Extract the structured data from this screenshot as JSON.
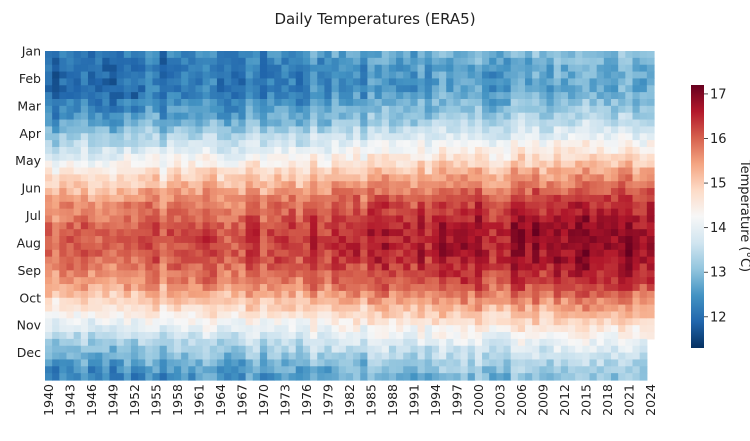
{
  "chart_data": {
    "type": "heatmap",
    "title": "Daily Temperatures (ERA5)",
    "xlabel": "",
    "ylabel": "",
    "x_tick_labels": [
      "1940",
      "1943",
      "1946",
      "1949",
      "1952",
      "1955",
      "1958",
      "1961",
      "1964",
      "1967",
      "1970",
      "1973",
      "1976",
      "1979",
      "1982",
      "1985",
      "1988",
      "1991",
      "1994",
      "1997",
      "2000",
      "2003",
      "2006",
      "2009",
      "2012",
      "2015",
      "2018",
      "2021",
      "2024"
    ],
    "y_tick_labels": [
      "Jan",
      "Feb",
      "Mar",
      "Apr",
      "May",
      "Jun",
      "Jul",
      "Aug",
      "Sep",
      "Oct",
      "Nov",
      "Dec"
    ],
    "year_range": [
      1940,
      2024
    ],
    "colorbar": {
      "label": "Temperature (°C)",
      "ticks": [
        12,
        13,
        14,
        15,
        16,
        17
      ],
      "range": [
        11.3,
        17.2
      ],
      "colormap": "RdBu_r"
    },
    "estimated_monthly_climatology_early": [
      11.9,
      11.9,
      12.5,
      13.5,
      14.6,
      15.5,
      15.9,
      15.9,
      15.4,
      14.4,
      13.3,
      12.4
    ],
    "estimated_warming_trend_per_decade": 0.12,
    "grid": false,
    "colors": {
      "cold": "#053061",
      "mid": "#f7f7f7",
      "hot": "#67001f"
    }
  }
}
